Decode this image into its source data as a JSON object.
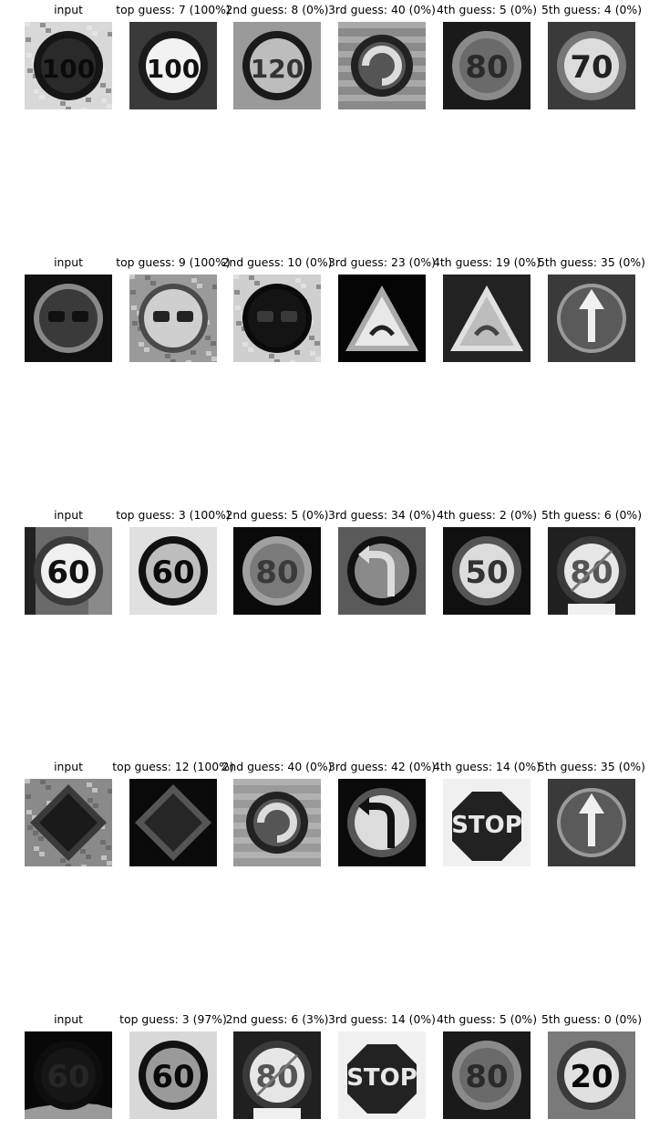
{
  "rows": [
    {
      "captions": [
        "input",
        "top guess: 7 (100%)",
        "2nd guess: 8 (0%)",
        "3rd guess: 40 (0%)",
        "4th guess: 5 (0%)",
        "5th guess: 4 (0%)"
      ],
      "images": [
        {
          "kind": "round",
          "text": "100",
          "bg": "#d8d8d8",
          "face": "#2a2a2a",
          "ring": "#151515",
          "fg": "#0a0a0a",
          "scene": "foliage"
        },
        {
          "kind": "round",
          "text": "100",
          "bg": "#3a3a3a",
          "face": "#f2f2f2",
          "ring": "#1a1a1a",
          "fg": "#111111",
          "scene": "plain"
        },
        {
          "kind": "round",
          "text": "120",
          "bg": "#9a9a9a",
          "face": "#bdbdbd",
          "ring": "#1a1a1a",
          "fg": "#333333",
          "scene": "plain"
        },
        {
          "kind": "roundabout",
          "bg": "#8a8a8a",
          "face": "#555555",
          "ring": "#222222",
          "fg": "#dcdcdc",
          "scene": "stripes"
        },
        {
          "kind": "round",
          "text": "80",
          "bg": "#1a1a1a",
          "face": "#6a6a6a",
          "ring": "#8a8a8a",
          "fg": "#2a2a2a",
          "scene": "plain"
        },
        {
          "kind": "round",
          "text": "70",
          "bg": "#3a3a3a",
          "face": "#dcdcdc",
          "ring": "#777777",
          "fg": "#222222",
          "scene": "plain"
        }
      ]
    },
    {
      "captions": [
        "input",
        "top guess: 9 (100%)",
        "2nd guess: 10 (0%)",
        "3rd guess: 23 (0%)",
        "4th guess: 19 (0%)",
        "5th guess: 35 (0%)"
      ],
      "images": [
        {
          "kind": "nopass",
          "bg": "#101010",
          "face": "#3a3a3a",
          "ring": "#888888",
          "fg": "#111111",
          "scene": "plain"
        },
        {
          "kind": "nopass",
          "bg": "#9a9a9a",
          "face": "#cfcfcf",
          "ring": "#4a4a4a",
          "fg": "#222222",
          "scene": "foliage"
        },
        {
          "kind": "nopass",
          "bg": "#cfcfcf",
          "face": "#141414",
          "ring": "#0a0a0a",
          "fg": "#3a3a3a",
          "scene": "foliage"
        },
        {
          "kind": "triangle",
          "bg": "#050505",
          "face": "#e8e8e8",
          "ring": "#aaaaaa",
          "fg": "#222222",
          "scene": "plain"
        },
        {
          "kind": "triangle",
          "bg": "#222222",
          "face": "#bdbdbd",
          "ring": "#e0e0e0",
          "fg": "#444444",
          "scene": "plain"
        },
        {
          "kind": "arrow",
          "bg": "#3a3a3a",
          "face": "#5a5a5a",
          "ring": "#9a9a9a",
          "fg": "#f0f0f0",
          "scene": "plain"
        }
      ]
    },
    {
      "captions": [
        "input",
        "top guess: 3 (100%)",
        "2nd guess: 5 (0%)",
        "3rd guess: 34 (0%)",
        "4th guess: 2 (0%)",
        "5th guess: 6 (0%)"
      ],
      "images": [
        {
          "kind": "round",
          "text": "60",
          "bg": "#6a6a6a",
          "face": "#f0f0f0",
          "ring": "#3a3a3a",
          "fg": "#111111",
          "scene": "building"
        },
        {
          "kind": "round",
          "text": "60",
          "bg": "#e0e0e0",
          "face": "#bdbdbd",
          "ring": "#111111",
          "fg": "#0a0a0a",
          "scene": "plain"
        },
        {
          "kind": "round",
          "text": "80",
          "bg": "#0a0a0a",
          "face": "#7a7a7a",
          "ring": "#a0a0a0",
          "fg": "#3a3a3a",
          "scene": "plain"
        },
        {
          "kind": "turn",
          "bg": "#5a5a5a",
          "face": "#8a8a8a",
          "ring": "#111111",
          "fg": "#dcdcdc",
          "scene": "plain"
        },
        {
          "kind": "round",
          "text": "50",
          "bg": "#101010",
          "face": "#dcdcdc",
          "ring": "#555555",
          "fg": "#333333",
          "scene": "plain"
        },
        {
          "kind": "end",
          "text": "80",
          "bg": "#202020",
          "face": "#e6e6e6",
          "ring": "#3a3a3a",
          "fg": "#555555",
          "scene": "plain"
        }
      ]
    },
    {
      "captions": [
        "input",
        "top guess: 12 (100%)",
        "2nd guess: 40 (0%)",
        "3rd guess: 42 (0%)",
        "4th guess: 14 (0%)",
        "5th guess: 35 (0%)"
      ],
      "images": [
        {
          "kind": "diamond",
          "bg": "#8a8a8a",
          "face": "#1a1a1a",
          "ring": "#3a3a3a",
          "fg": "#202020",
          "scene": "foliage"
        },
        {
          "kind": "diamond",
          "bg": "#0a0a0a",
          "face": "#262626",
          "ring": "#555555",
          "fg": "#202020",
          "scene": "plain"
        },
        {
          "kind": "roundabout",
          "bg": "#9a9a9a",
          "face": "#555555",
          "ring": "#222222",
          "fg": "#dcdcdc",
          "scene": "stripes"
        },
        {
          "kind": "turn",
          "bg": "#0a0a0a",
          "face": "#dcdcdc",
          "ring": "#555555",
          "fg": "#111111",
          "scene": "plain"
        },
        {
          "kind": "stop",
          "text": "STOP",
          "bg": "#f0f0f0",
          "face": "#222222",
          "ring": "#f0f0f0",
          "fg": "#e8e8e8",
          "scene": "plain"
        },
        {
          "kind": "arrow",
          "bg": "#3a3a3a",
          "face": "#5a5a5a",
          "ring": "#9a9a9a",
          "fg": "#f0f0f0",
          "scene": "plain"
        }
      ]
    },
    {
      "captions": [
        "input",
        "top guess: 3 (97%)",
        "2nd guess: 6 (3%)",
        "3rd guess: 14 (0%)",
        "4th guess: 5 (0%)",
        "5th guess: 0 (0%)"
      ],
      "images": [
        {
          "kind": "round",
          "text": "60",
          "bg": "#080808",
          "face": "#161616",
          "ring": "#0e0e0e",
          "fg": "#262626",
          "scene": "car"
        },
        {
          "kind": "round",
          "text": "60",
          "bg": "#d8d8d8",
          "face": "#9a9a9a",
          "ring": "#111111",
          "fg": "#0a0a0a",
          "scene": "plain"
        },
        {
          "kind": "end",
          "text": "80",
          "bg": "#202020",
          "face": "#e6e6e6",
          "ring": "#3a3a3a",
          "fg": "#555555",
          "scene": "plain"
        },
        {
          "kind": "stop",
          "text": "STOP",
          "bg": "#f0f0f0",
          "face": "#222222",
          "ring": "#f0f0f0",
          "fg": "#e8e8e8",
          "scene": "plain"
        },
        {
          "kind": "round",
          "text": "80",
          "bg": "#1a1a1a",
          "face": "#6a6a6a",
          "ring": "#8a8a8a",
          "fg": "#2a2a2a",
          "scene": "plain"
        },
        {
          "kind": "round",
          "text": "20",
          "bg": "#7a7a7a",
          "face": "#e0e0e0",
          "ring": "#3a3a3a",
          "fg": "#0a0a0a",
          "scene": "plain"
        }
      ]
    }
  ]
}
